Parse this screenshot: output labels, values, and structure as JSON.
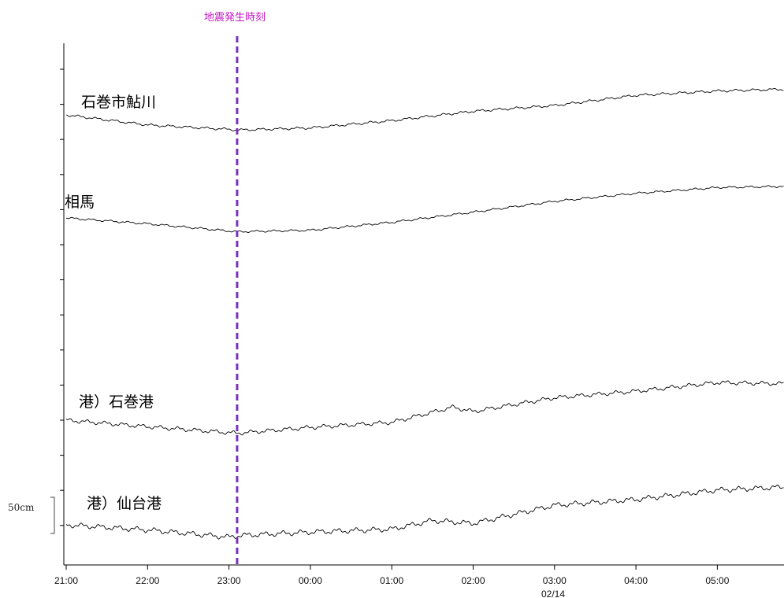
{
  "chart_data": {
    "type": "line",
    "x_ticks": [
      "21:00",
      "22:00",
      "23:00",
      "00:00",
      "01:00",
      "02:00",
      "03:00",
      "04:00",
      "05:00"
    ],
    "x_date_label": "02/14",
    "event": {
      "label": "地震発生時刻",
      "time_hours": 23.1,
      "color": "#7b2fbe",
      "label_color": "#c01bc0"
    },
    "scale_bar": {
      "label": "50cm",
      "value_cm": 50
    },
    "series": [
      {
        "name": "石巻市鮎川",
        "trend_cm": [
          [
            21.0,
            0
          ],
          [
            22.0,
            -14
          ],
          [
            23.0,
            -20
          ],
          [
            23.1,
            -21
          ],
          [
            24.0,
            -18
          ],
          [
            25.0,
            -8
          ],
          [
            26.0,
            5
          ],
          [
            27.0,
            13
          ],
          [
            28.0,
            27
          ],
          [
            29.0,
            33
          ],
          [
            30.0,
            36
          ]
        ],
        "tide_amplitude_cm": 1.2
      },
      {
        "name": "相馬",
        "trend_cm": [
          [
            21.0,
            0
          ],
          [
            22.0,
            -8
          ],
          [
            23.1,
            -19
          ],
          [
            24.0,
            -17
          ],
          [
            25.0,
            -6
          ],
          [
            26.0,
            8
          ],
          [
            27.0,
            23
          ],
          [
            28.0,
            34
          ],
          [
            29.0,
            42
          ],
          [
            30.0,
            44
          ]
        ],
        "tide_amplitude_cm": 1.0
      },
      {
        "name": "港）石巻港",
        "trend_cm": [
          [
            21.0,
            0
          ],
          [
            22.0,
            -9
          ],
          [
            23.1,
            -18
          ],
          [
            24.0,
            -10
          ],
          [
            25.0,
            -3
          ],
          [
            25.75,
            18
          ],
          [
            26.0,
            12
          ],
          [
            27.0,
            31
          ],
          [
            28.0,
            40
          ],
          [
            29.0,
            52
          ],
          [
            30.0,
            50
          ]
        ],
        "tide_amplitude_cm": 2.0
      },
      {
        "name": "港）仙台港",
        "trend_cm": [
          [
            21.0,
            0
          ],
          [
            22.0,
            -7
          ],
          [
            23.0,
            -17
          ],
          [
            23.1,
            -15
          ],
          [
            24.0,
            -10
          ],
          [
            25.0,
            -6
          ],
          [
            25.5,
            6
          ],
          [
            26.0,
            2
          ],
          [
            27.0,
            27
          ],
          [
            28.0,
            35
          ],
          [
            29.0,
            48
          ],
          [
            30.0,
            53
          ]
        ],
        "tide_amplitude_cm": 2.5
      }
    ]
  }
}
